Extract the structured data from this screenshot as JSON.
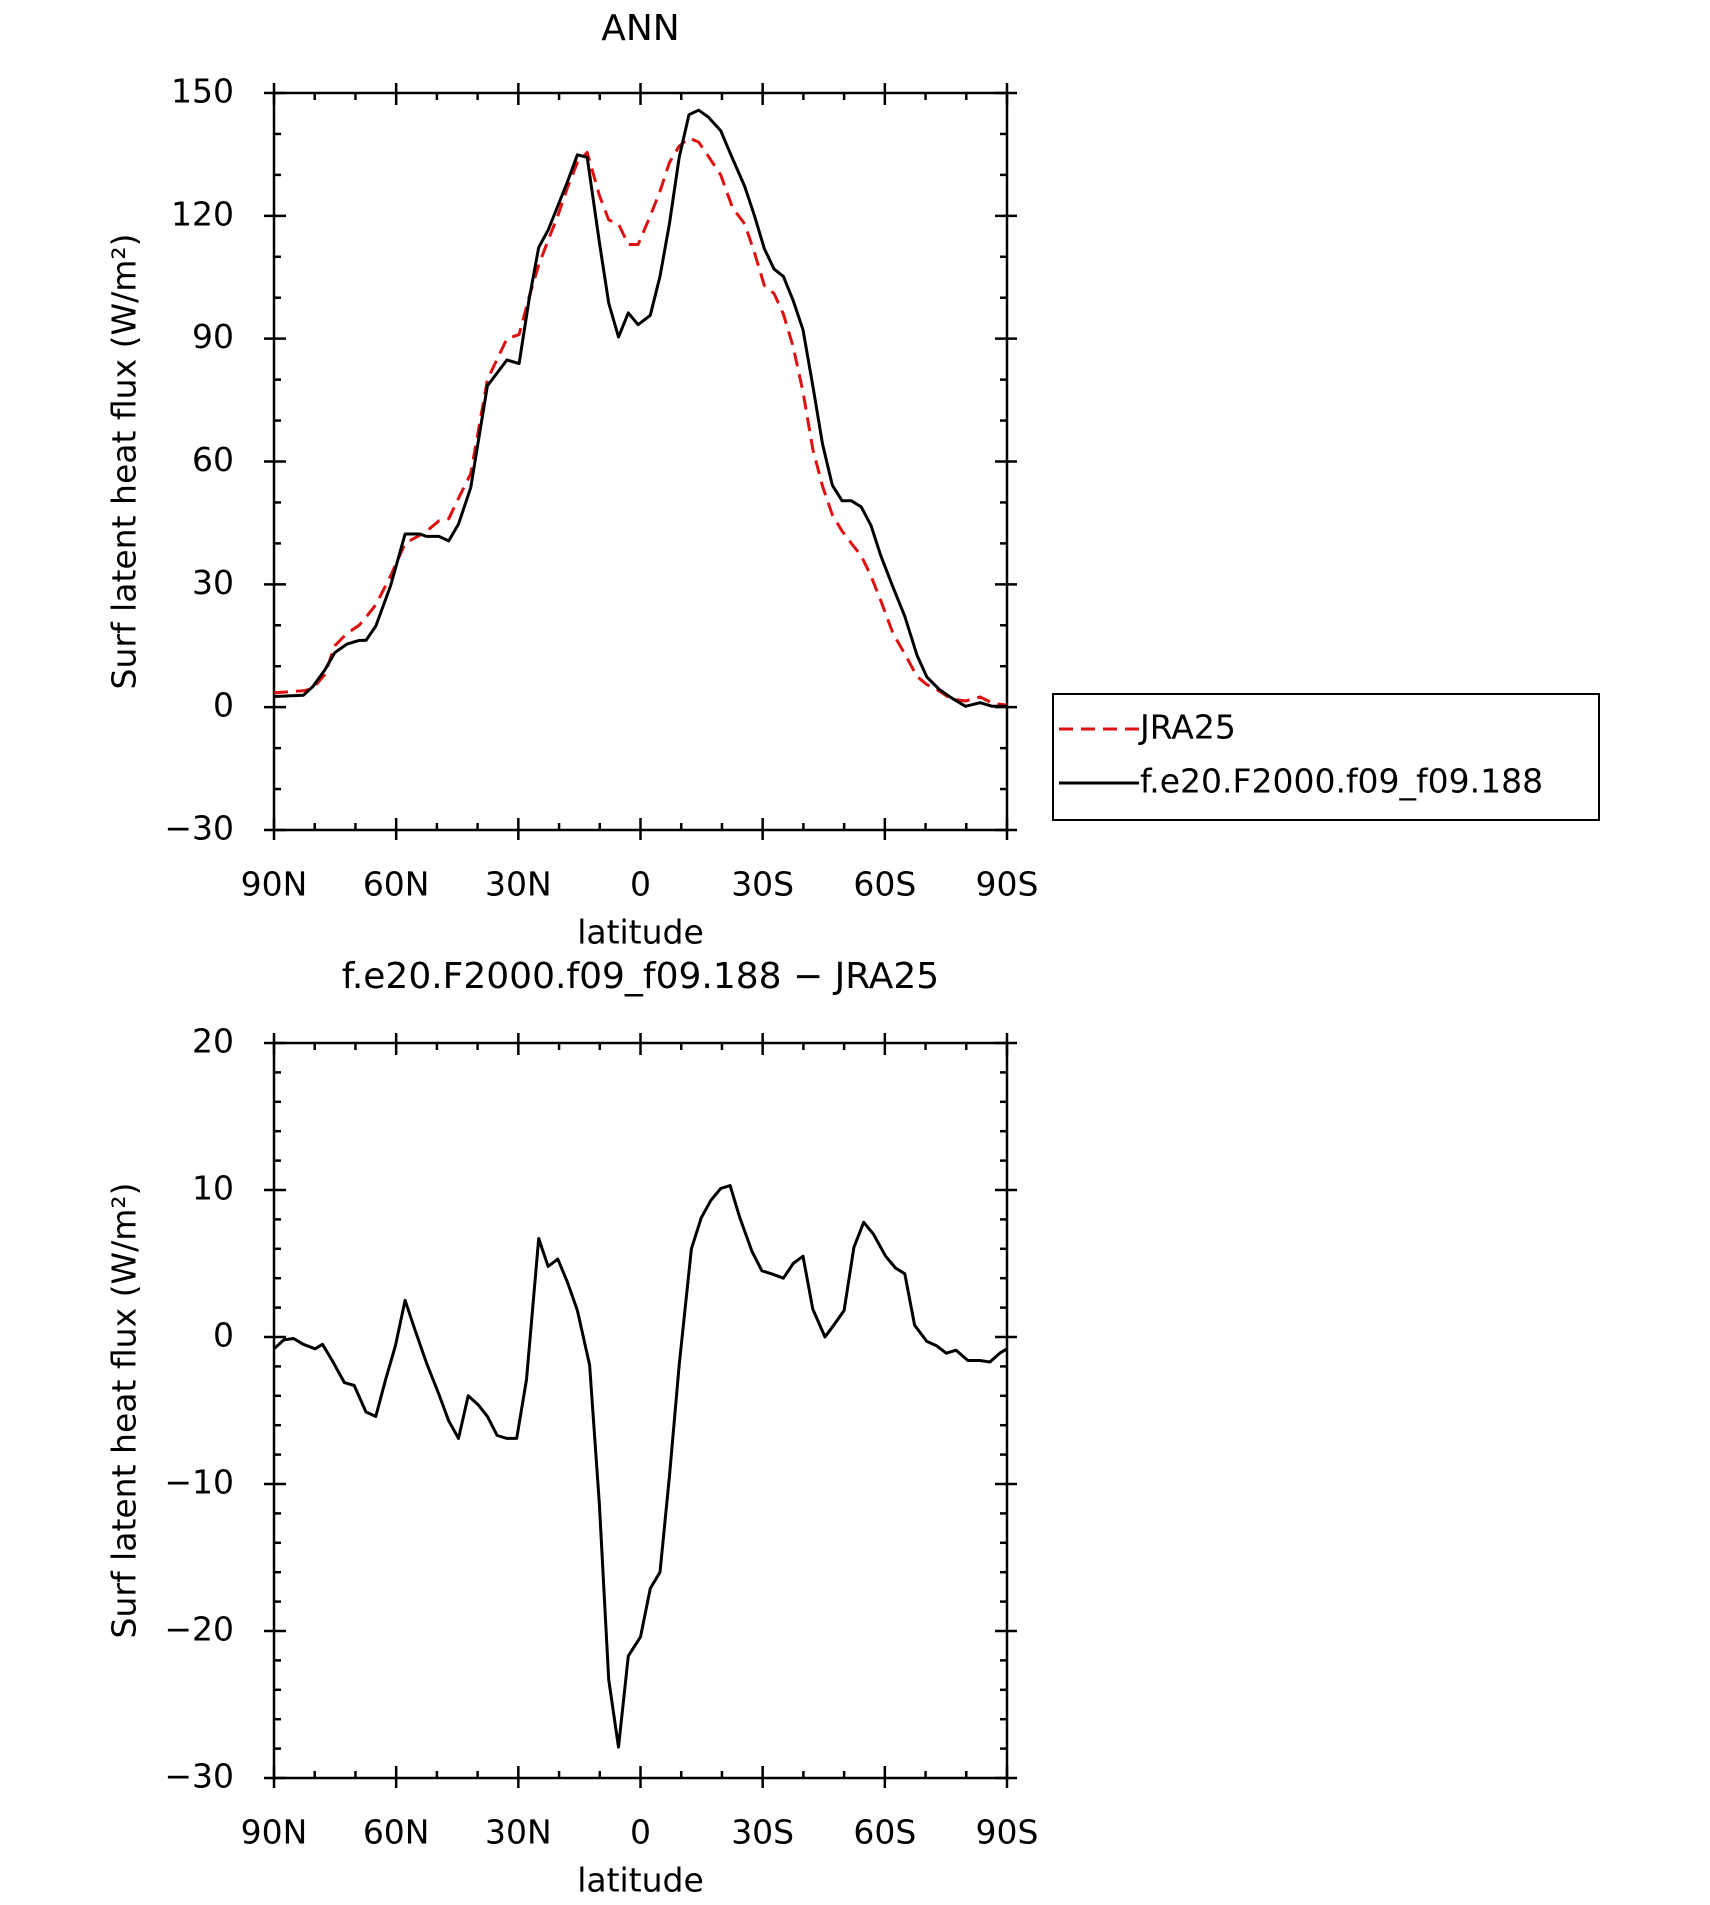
{
  "chart_data": [
    {
      "type": "line",
      "title": "ANN",
      "xlabel": "latitude",
      "ylabel": "Surf latent heat flux (W/m²)",
      "xlim": [
        90,
        -90
      ],
      "xticks": [
        {
          "value": 90,
          "label": "90N"
        },
        {
          "value": 60,
          "label": "60N"
        },
        {
          "value": 30,
          "label": "30N"
        },
        0,
        {
          "value": -30,
          "label": "30S"
        },
        {
          "value": -60,
          "label": "60S"
        },
        {
          "value": -90,
          "label": "90S"
        }
      ],
      "xminorticks": [
        80,
        70,
        50,
        40,
        20,
        10,
        -10,
        -20,
        -40,
        -50,
        -70,
        -80
      ],
      "ylim": [
        -30,
        150
      ],
      "yticks": [
        {
          "value": -30,
          "label": "−30"
        },
        0,
        30,
        60,
        90,
        120,
        150
      ],
      "yminorticks": [
        -20,
        -10,
        10,
        20,
        40,
        50,
        70,
        80,
        100,
        110,
        130,
        140
      ],
      "legend": "right",
      "x": [
        90,
        82.8,
        80.5,
        77.5,
        75.1,
        72.1,
        69.1,
        67.4,
        65,
        61.4,
        57.8,
        54.2,
        52.5,
        49.5,
        47.1,
        44.7,
        41.7,
        37.6,
        32.8,
        29.8,
        27.4,
        25,
        22.7,
        20.3,
        17.9,
        15.5,
        13.1,
        10.1,
        7.8,
        5.4,
        3,
        0.6,
        -2.4,
        -4.8,
        -7.1,
        -9.5,
        -11.9,
        -14.3,
        -16.7,
        -19.7,
        -22.6,
        -25.6,
        -28,
        -30.4,
        -32.8,
        -35.1,
        -37.5,
        -39.9,
        -42.3,
        -44.7,
        -47.1,
        -49.5,
        -51.8,
        -54.2,
        -56.6,
        -59,
        -62,
        -64.9,
        -67.9,
        -70.3,
        -73.3,
        -76.3,
        -79.8,
        -83.4,
        -86.4,
        -90
      ],
      "series": [
        {
          "name": "JRA25",
          "color": "#e01010",
          "dash": true,
          "values": [
            3.5,
            4,
            4.5,
            8,
            15,
            18,
            20,
            22,
            25,
            32,
            40,
            42,
            43,
            45.5,
            46,
            51,
            57,
            80,
            90,
            91,
            100,
            108,
            114,
            120,
            127,
            133,
            135.5,
            125,
            119,
            118,
            113,
            113,
            120,
            126,
            133,
            137,
            139,
            138,
            134.5,
            130,
            122,
            118,
            111,
            103,
            101,
            96,
            88,
            77,
            63,
            54,
            47,
            43,
            40,
            37,
            32,
            26,
            18,
            13,
            7.5,
            5.5,
            4,
            2,
            1.5,
            2.5,
            1,
            0.5
          ]
        },
        {
          "name": "f.e20.F2000.f09_f09.188",
          "color": "#000000",
          "dash": false,
          "values": [
            2.6,
            2.9,
            5,
            9.1,
            13.3,
            15.4,
            16.3,
            16.3,
            19.8,
            29.6,
            42.3,
            42.3,
            41.7,
            41.7,
            40.6,
            44.7,
            53.6,
            78.5,
            84.8,
            83.9,
            99.3,
            112.3,
            116.5,
            122.4,
            128.4,
            134.9,
            134.3,
            113.5,
            98.7,
            90.4,
            96.3,
            93.4,
            95.7,
            105.2,
            118,
            134.3,
            144.7,
            145.8,
            144.1,
            140.8,
            134,
            127.2,
            120,
            112,
            107,
            105.2,
            99.3,
            92.2,
            78.5,
            64.3,
            54.2,
            50.4,
            50.4,
            48.9,
            44.4,
            37,
            29.3,
            22.2,
            12.7,
            7.4,
            4.4,
            2.3,
            0.2,
            1.1,
            0.2,
            0.2
          ]
        }
      ]
    },
    {
      "type": "line",
      "title": "f.e20.F2000.f09_f09.188 − JRA25",
      "xlabel": "latitude",
      "ylabel": "Surf latent heat flux (W/m²)",
      "xlim": [
        90,
        -90
      ],
      "xticks": [
        {
          "value": 90,
          "label": "90N"
        },
        {
          "value": 60,
          "label": "60N"
        },
        {
          "value": 30,
          "label": "30N"
        },
        0,
        {
          "value": -30,
          "label": "30S"
        },
        {
          "value": -60,
          "label": "60S"
        },
        {
          "value": -90,
          "label": "90S"
        }
      ],
      "xminorticks": [
        80,
        70,
        50,
        40,
        20,
        10,
        -10,
        -20,
        -40,
        -50,
        -70,
        -80
      ],
      "ylim": [
        -30,
        20
      ],
      "yticks": [
        {
          "value": -30,
          "label": "−30"
        },
        {
          "value": -20,
          "label": "−20"
        },
        {
          "value": -10,
          "label": "−10"
        },
        0,
        10,
        20
      ],
      "yminorticks": [
        -28,
        -26,
        -24,
        -22,
        -18,
        -16,
        -14,
        -12,
        -8,
        -6,
        -4,
        -2,
        2,
        4,
        6,
        8,
        12,
        14,
        16,
        18
      ],
      "x": [
        90,
        87.6,
        85.2,
        82.8,
        79.9,
        78.1,
        75.7,
        72.7,
        70.3,
        67.4,
        65,
        62.6,
        60.2,
        57.8,
        55.4,
        52.5,
        49.5,
        47.1,
        44.7,
        42.3,
        39.9,
        37.6,
        35.2,
        32.8,
        30.4,
        28,
        25,
        22.7,
        20.3,
        17.9,
        15.5,
        12.5,
        10.1,
        7.8,
        5.4,
        3,
        0,
        -2.4,
        -4.8,
        -7.1,
        -9.5,
        -12.5,
        -14.9,
        -17.3,
        -19.7,
        -22,
        -24.4,
        -27.4,
        -29.8,
        -32.2,
        -35.1,
        -37.5,
        -39.9,
        -42.3,
        -45.3,
        -47.7,
        -50,
        -52.4,
        -54.8,
        -57.2,
        -60.2,
        -62.6,
        -64.9,
        -67.3,
        -70.3,
        -72.7,
        -75.1,
        -77.5,
        -80.4,
        -83.4,
        -85.8,
        -88.2,
        -90
      ],
      "series": [
        {
          "color": "#000000",
          "dash": false,
          "values": [
            -0.8,
            -0.2,
            -0.1,
            -0.5,
            -0.8,
            -0.5,
            -1.6,
            -3.1,
            -3.3,
            -5.1,
            -5.4,
            -2.9,
            -0.6,
            2.5,
            0.5,
            -1.8,
            -3.9,
            -5.7,
            -6.9,
            -4,
            -4.6,
            -5.4,
            -6.7,
            -6.9,
            -6.9,
            -2.9,
            6.7,
            4.8,
            5.3,
            3.7,
            1.8,
            -1.9,
            -11.4,
            -23.3,
            -27.9,
            -21.7,
            -20.4,
            -17.1,
            -16,
            -9.5,
            -1.9,
            6,
            8.1,
            9.3,
            10.1,
            10.3,
            8.1,
            5.8,
            4.5,
            4.3,
            4,
            5,
            5.5,
            1.9,
            0,
            0.9,
            1.8,
            6.1,
            7.8,
            7,
            5.5,
            4.7,
            4.3,
            0.8,
            -0.3,
            -0.6,
            -1.1,
            -0.9,
            -1.6,
            -1.6,
            -1.7,
            -1.1,
            -0.8
          ]
        }
      ]
    }
  ]
}
